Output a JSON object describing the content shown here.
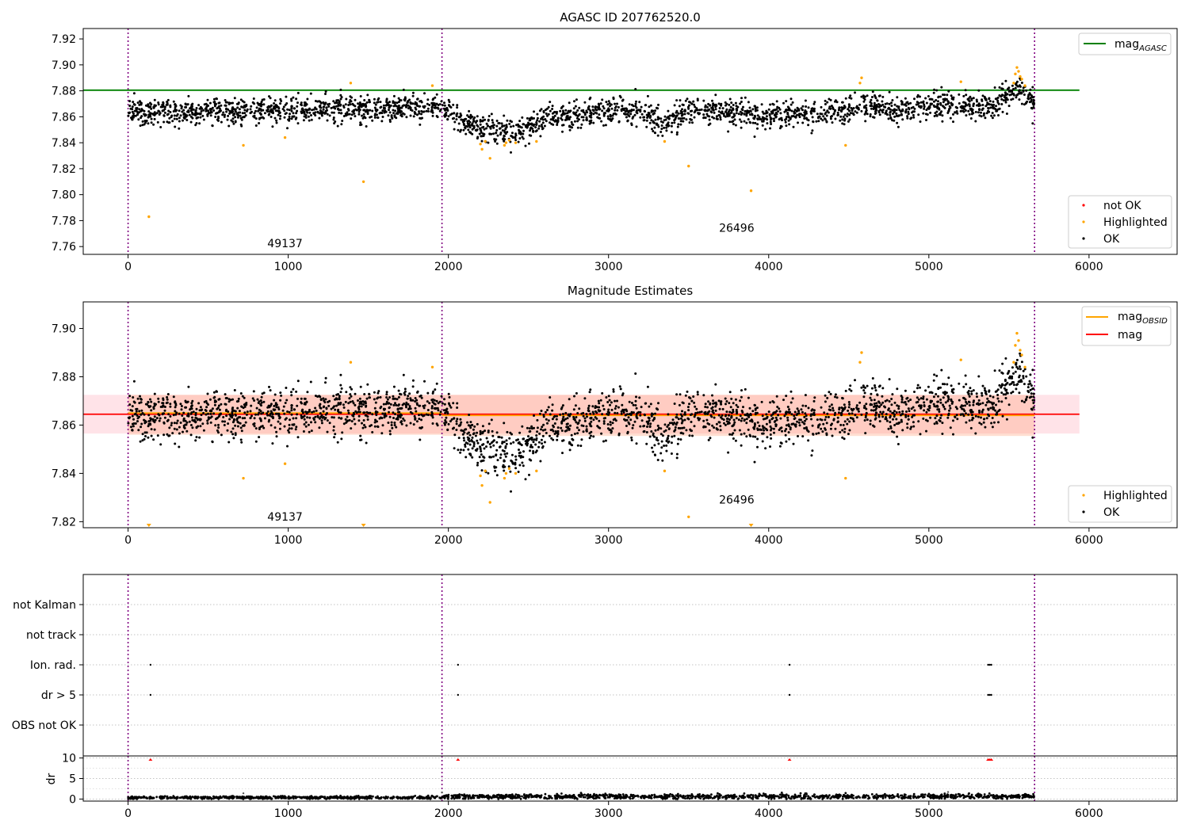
{
  "chart_data": [
    {
      "type": "scatter",
      "title": "AGASC ID 207762520.0",
      "xlabel": "",
      "ylabel": "",
      "xlim": [
        -280,
        6550
      ],
      "ylim": [
        7.754,
        7.928
      ],
      "x_ticks": [
        "0",
        "1000",
        "2000",
        "3000",
        "4000",
        "5000",
        "6000"
      ],
      "y_ticks": [
        "7.76",
        "7.78",
        "7.80",
        "7.82",
        "7.84",
        "7.86",
        "7.88",
        "7.90",
        "7.92"
      ],
      "obs_boundaries": [
        0,
        1960,
        5660
      ],
      "obs_labels": [
        {
          "text": "49137",
          "x": 980,
          "y": 7.7595
        },
        {
          "text": "26496",
          "x": 3800,
          "y": 7.7715
        }
      ],
      "reference_lines": [
        {
          "name": "mag_AGASC",
          "y": 7.8805,
          "x_range": [
            -280,
            5940
          ],
          "color": "#008000"
        }
      ],
      "legend": {
        "position": "upper-right",
        "entries": [
          {
            "label": "mag",
            "sub": "AGASC",
            "color": "#008000",
            "kind": "line"
          }
        ]
      },
      "legend2": {
        "position": "lower-right",
        "entries": [
          {
            "label": "not OK",
            "color": "#ff0000",
            "kind": "point"
          },
          {
            "label": "Highlighted",
            "color": "#ffa500",
            "kind": "point"
          },
          {
            "label": "OK",
            "color": "#000000",
            "kind": "point"
          }
        ]
      },
      "series": [
        {
          "name": "OK",
          "color": "#000000",
          "trend_x": [
            0,
            400,
            800,
            1200,
            1600,
            1950,
            2100,
            2200,
            2300,
            2400,
            2500,
            2600,
            2800,
            3000,
            3200,
            3300,
            3400,
            3500,
            3700,
            3900,
            4100,
            4300,
            4500,
            4600,
            4700,
            4800,
            5000,
            5200,
            5400,
            5550,
            5660
          ],
          "trend_y": [
            7.864,
            7.864,
            7.865,
            7.866,
            7.866,
            7.866,
            7.858,
            7.849,
            7.851,
            7.847,
            7.852,
            7.858,
            7.861,
            7.864,
            7.864,
            7.856,
            7.857,
            7.866,
            7.864,
            7.861,
            7.863,
            7.862,
            7.866,
            7.868,
            7.869,
            7.863,
            7.868,
            7.868,
            7.868,
            7.881,
            7.872
          ],
          "spread": 0.011
        },
        {
          "name": "Highlighted",
          "color": "#ffa500",
          "x": [
            130,
            720,
            980,
            1390,
            1470,
            1900,
            2200,
            2210,
            2230,
            2260,
            2350,
            2360,
            2380,
            2420,
            2550,
            3350,
            3500,
            3890,
            4480,
            4570,
            4580,
            5200,
            5540,
            5550,
            5560,
            5570,
            5580,
            5600,
            5530
          ],
          "y": [
            7.783,
            7.838,
            7.844,
            7.886,
            7.81,
            7.884,
            7.839,
            7.835,
            7.841,
            7.828,
            7.838,
            7.84,
            7.842,
            7.84,
            7.841,
            7.841,
            7.822,
            7.803,
            7.838,
            7.886,
            7.89,
            7.887,
            7.893,
            7.898,
            7.895,
            7.891,
            7.889,
            7.884,
            7.886
          ]
        },
        {
          "name": "not OK",
          "color": "#ff0000",
          "x": [],
          "y": []
        }
      ]
    },
    {
      "type": "scatter",
      "title": "Magnitude Estimates",
      "xlabel": "",
      "ylabel": "",
      "xlim": [
        -280,
        6550
      ],
      "ylim": [
        7.8175,
        7.911
      ],
      "x_ticks": [
        "0",
        "1000",
        "2000",
        "3000",
        "4000",
        "5000",
        "6000"
      ],
      "y_ticks": [
        "7.82",
        "7.84",
        "7.86",
        "7.88",
        "7.90"
      ],
      "obs_boundaries": [
        0,
        1960,
        5660
      ],
      "obs_labels": [
        {
          "text": "49137",
          "x": 980,
          "y": 7.8205
        },
        {
          "text": "26496",
          "x": 3800,
          "y": 7.8275
        }
      ],
      "bands": [
        {
          "y0": 7.8565,
          "y1": 7.8725,
          "x_range": [
            -280,
            5940
          ],
          "color": "#ffc0cb",
          "opacity": 0.45
        },
        {
          "y0": 7.856,
          "y1": 7.8725,
          "x_range": [
            0,
            1960
          ],
          "color": "#ffa07a",
          "opacity": 0.35
        },
        {
          "y0": 7.8555,
          "y1": 7.8725,
          "x_range": [
            1960,
            5660
          ],
          "color": "#ffa07a",
          "opacity": 0.35
        }
      ],
      "reference_lines": [
        {
          "name": "mag",
          "y": 7.8645,
          "x_range": [
            -280,
            5940
          ],
          "color": "#ff0000"
        },
        {
          "name": "mag_OBSID",
          "y": 7.865,
          "x_range": [
            0,
            1960
          ],
          "color": "#ffa500"
        },
        {
          "name": "mag_OBSID",
          "y": 7.864,
          "x_range": [
            1960,
            5660
          ],
          "color": "#ffa500"
        }
      ],
      "legend": {
        "position": "upper-right",
        "entries": [
          {
            "label": "mag",
            "sub": "OBSID",
            "color": "#ffa500",
            "kind": "line"
          },
          {
            "label": "mag",
            "sub": "",
            "color": "#ff0000",
            "kind": "line"
          }
        ]
      },
      "legend2": {
        "position": "lower-right",
        "entries": [
          {
            "label": "Highlighted",
            "color": "#ffa500",
            "kind": "point"
          },
          {
            "label": "OK",
            "color": "#000000",
            "kind": "point"
          }
        ]
      },
      "clipped_markers": {
        "x": [
          130,
          1470,
          3890
        ],
        "color": "#ffa500"
      },
      "series": [
        {
          "name": "OK",
          "color": "#000000",
          "trend_x": [
            0,
            400,
            800,
            1200,
            1600,
            1950,
            2100,
            2200,
            2300,
            2400,
            2500,
            2600,
            2800,
            3000,
            3200,
            3300,
            3400,
            3500,
            3700,
            3900,
            4100,
            4300,
            4500,
            4600,
            4700,
            4800,
            5000,
            5200,
            5400,
            5550,
            5660
          ],
          "trend_y": [
            7.864,
            7.864,
            7.865,
            7.866,
            7.866,
            7.866,
            7.858,
            7.849,
            7.851,
            7.847,
            7.852,
            7.858,
            7.861,
            7.864,
            7.864,
            7.856,
            7.857,
            7.866,
            7.864,
            7.861,
            7.863,
            7.862,
            7.866,
            7.868,
            7.869,
            7.863,
            7.868,
            7.868,
            7.868,
            7.881,
            7.872
          ],
          "spread": 0.011
        },
        {
          "name": "Highlighted",
          "color": "#ffa500",
          "x": [
            720,
            980,
            1390,
            1900,
            2200,
            2210,
            2230,
            2260,
            2350,
            2360,
            2380,
            2420,
            2550,
            3350,
            3500,
            4480,
            4570,
            4580,
            5200,
            5540,
            5550,
            5560,
            5570,
            5580,
            5600,
            5530
          ],
          "y": [
            7.838,
            7.844,
            7.886,
            7.884,
            7.839,
            7.835,
            7.841,
            7.828,
            7.838,
            7.84,
            7.842,
            7.84,
            7.841,
            7.841,
            7.822,
            7.838,
            7.886,
            7.89,
            7.887,
            7.893,
            7.898,
            7.895,
            7.891,
            7.889,
            7.884,
            7.886
          ]
        }
      ]
    },
    {
      "type": "scatter",
      "title": "",
      "xlabel": "",
      "ylabel": "",
      "xlim": [
        -280,
        6550
      ],
      "categories": [
        "not Kalman",
        "not track",
        "Ion. rad.",
        "dr > 5",
        "OBS not OK"
      ],
      "obs_boundaries": [
        0,
        1960,
        5660
      ],
      "flags": [
        {
          "category": "Ion. rad.",
          "x": [
            140,
            2060,
            4130,
            5370,
            5380,
            5390
          ]
        },
        {
          "category": "dr > 5",
          "x": [
            140,
            2060,
            4130,
            5370,
            5380,
            5390
          ]
        }
      ],
      "series": [
        {
          "name": "",
          "color": "#000000"
        }
      ]
    },
    {
      "type": "scatter",
      "title": "",
      "xlabel": "",
      "ylabel": "dr",
      "xlim": [
        -280,
        6550
      ],
      "ylim": [
        -0.5,
        10.5
      ],
      "x_ticks": [
        "0",
        "1000",
        "2000",
        "3000",
        "4000",
        "5000",
        "6000"
      ],
      "y_ticks": [
        "0",
        "5",
        "10"
      ],
      "obs_boundaries": [
        0,
        1960,
        5660
      ],
      "clipped_markers": {
        "x": [
          140,
          2060,
          4130,
          5370,
          5380,
          5390
        ],
        "color": "#ff0000"
      },
      "series": [
        {
          "name": "dr",
          "color": "#000000",
          "segments": [
            {
              "x0": 0,
              "x1": 1960,
              "mean": 0.35,
              "spread": 0.35
            },
            {
              "x0": 1960,
              "x1": 5660,
              "mean": 0.6,
              "spread": 0.6
            }
          ],
          "outliers_x": [
            720,
            1960,
            5120
          ],
          "outliers_y": [
            1.4,
            1.6,
            1.7
          ]
        }
      ]
    }
  ]
}
